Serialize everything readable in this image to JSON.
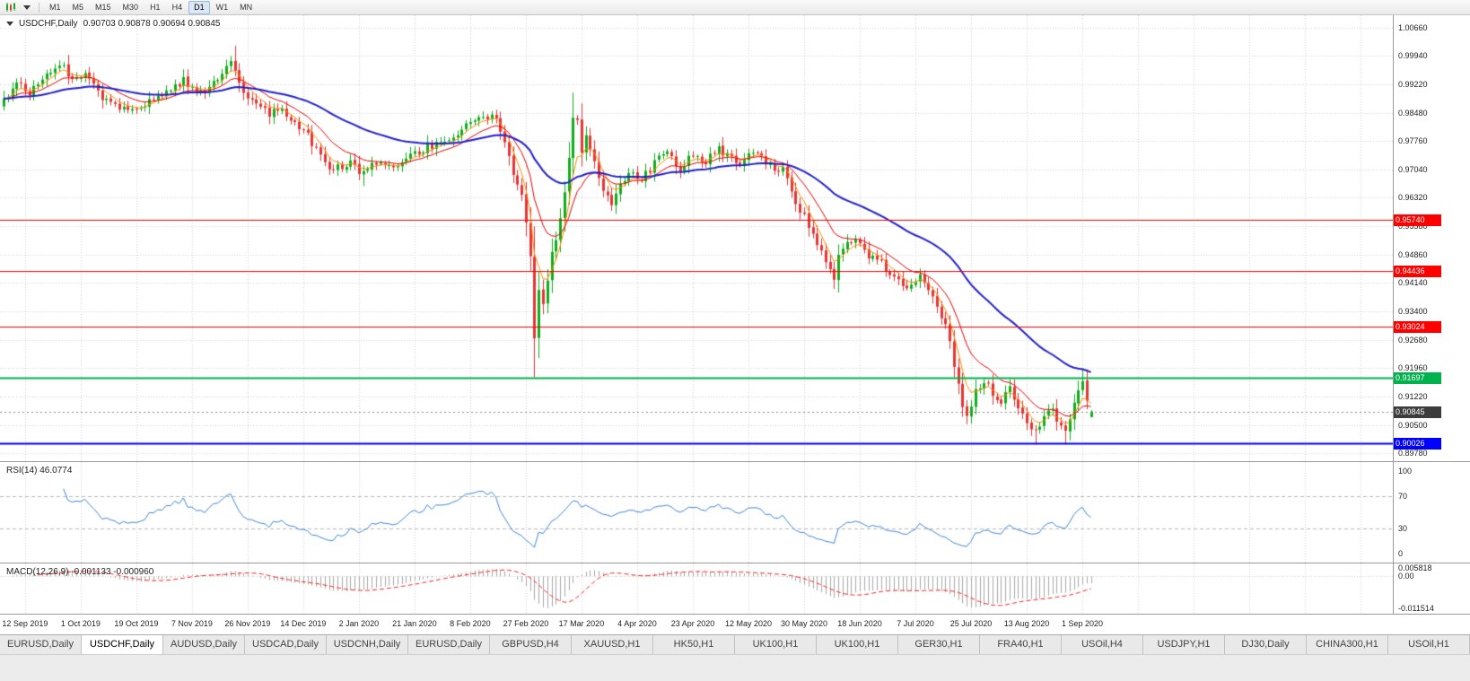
{
  "toolbar": {
    "timeframes": [
      {
        "label": "M1",
        "active": false
      },
      {
        "label": "M5",
        "active": false
      },
      {
        "label": "M15",
        "active": false
      },
      {
        "label": "M30",
        "active": false
      },
      {
        "label": "H1",
        "active": false
      },
      {
        "label": "H4",
        "active": false
      },
      {
        "label": "D1",
        "active": true
      },
      {
        "label": "W1",
        "active": false
      },
      {
        "label": "MN",
        "active": false
      }
    ]
  },
  "chart": {
    "title_symbol": "USDCHF,Daily",
    "title_ohlc": "0.90703 0.90878 0.90694 0.90845",
    "price_axis_labels": [
      "1.00660",
      "0.99940",
      "0.99220",
      "0.98480",
      "0.97760",
      "0.97040",
      "0.96320",
      "0.95580",
      "0.94860",
      "0.94140",
      "0.93400",
      "0.92680",
      "0.91960",
      "0.91220",
      "0.90500",
      "0.89780"
    ],
    "hlines": [
      {
        "price": 0.9574,
        "label": "0.95740",
        "color": "#ff0000",
        "width": 1
      },
      {
        "price": 0.94436,
        "label": "0.94436",
        "color": "#ff0000",
        "width": 1
      },
      {
        "price": 0.93024,
        "label": "0.93024",
        "color": "#ff0000",
        "width": 1
      },
      {
        "price": 0.91697,
        "label": "0.91697",
        "color": "#00b24c",
        "width": 2
      },
      {
        "price": 0.90026,
        "label": "0.90026",
        "color": "#0000ff",
        "width": 2
      }
    ],
    "current_price": {
      "value": 0.90845,
      "label": "0.90845",
      "color": "#3c3c3c"
    }
  },
  "rsi": {
    "label": "RSI(14) 46.0774",
    "period": 14,
    "last_value": 46.0774,
    "axis": [
      {
        "v": 100,
        "t": "100"
      },
      {
        "v": 70,
        "t": "70"
      },
      {
        "v": 30,
        "t": "30"
      },
      {
        "v": 0,
        "t": "0"
      }
    ],
    "level_lines": [
      70,
      30
    ]
  },
  "macd": {
    "label": "MACD(12,26,9) -0.001133 -0.000960",
    "fast": 12,
    "slow": 26,
    "signal": 9,
    "last_macd": -0.001133,
    "last_signal": -0.00096,
    "axis_top": "0.005818",
    "axis_zero": "0.00",
    "axis_bottom": "-0.011514"
  },
  "time_axis": {
    "labels": [
      "12 Sep 2019",
      "1 Oct 2019",
      "19 Oct 2019",
      "7 Nov 2019",
      "26 Nov 2019",
      "14 Dec 2019",
      "2 Jan 2020",
      "21 Jan 2020",
      "8 Feb 2020",
      "27 Feb 2020",
      "17 Mar 2020",
      "4 Apr 2020",
      "23 Apr 2020",
      "12 May 2020",
      "30 May 2020",
      "18 Jun 2020",
      "7 Jul 2020",
      "25 Jul 2020",
      "13 Aug 2020",
      "1 Sep 2020"
    ]
  },
  "tabs": [
    {
      "label": "EURUSD,Daily",
      "active": false
    },
    {
      "label": "USDCHF,Daily",
      "active": true
    },
    {
      "label": "AUDUSD,Daily",
      "active": false
    },
    {
      "label": "USDCAD,Daily",
      "active": false
    },
    {
      "label": "USDCNH,Daily",
      "active": false
    },
    {
      "label": "EURUSD,Daily",
      "active": false
    },
    {
      "label": "GBPUSD,H4",
      "active": false
    },
    {
      "label": "XAUUSD,H1",
      "active": false
    },
    {
      "label": "HK50,H1",
      "active": false
    },
    {
      "label": "UK100,H1",
      "active": false
    },
    {
      "label": "UK100,H1",
      "active": false
    },
    {
      "label": "GER30,H1",
      "active": false
    },
    {
      "label": "FRA40,H1",
      "active": false
    },
    {
      "label": "USOil,H4",
      "active": false
    },
    {
      "label": "USDJPY,H1",
      "active": false
    },
    {
      "label": "DJ30,Daily",
      "active": false
    },
    {
      "label": "CHINA300,H1",
      "active": false
    },
    {
      "label": "USOil,H1",
      "active": false
    }
  ],
  "colors": {
    "up": "#0fae1c",
    "down": "#e93434",
    "ma_fast": "#ff8a00",
    "ma_mid": "#e80000",
    "ma_slow": "#2121cc",
    "rsi": "#3f87d6",
    "rsi_level": "#b8b8b8",
    "macd_hist": "#a8a8a8",
    "macd_signal": "#ff2424",
    "grid": "#d4d4d4",
    "current_line": "#8a8a8a"
  },
  "chart_data": {
    "type": "candlestick",
    "symbol": "USDCHF",
    "timeframe": "Daily",
    "days": 255,
    "time_axis_first_day": 5,
    "time_axis_step_days": 13,
    "last_ohlc": {
      "open": 0.90703,
      "high": 0.90878,
      "low": 0.90694,
      "close": 0.90845
    },
    "visible_price_range": {
      "high": 1.0066,
      "low": 0.8978
    },
    "close_waypoints": [
      [
        0,
        0.9885
      ],
      [
        3,
        0.992
      ],
      [
        6,
        0.99
      ],
      [
        9,
        0.9935
      ],
      [
        12,
        0.9965
      ],
      [
        13,
        0.9975
      ],
      [
        16,
        0.993
      ],
      [
        19,
        0.9958
      ],
      [
        22,
        0.99
      ],
      [
        26,
        0.9865
      ],
      [
        30,
        0.985
      ],
      [
        34,
        0.9882
      ],
      [
        38,
        0.9902
      ],
      [
        42,
        0.993
      ],
      [
        46,
        0.9896
      ],
      [
        50,
        0.9942
      ],
      [
        53,
        0.9985
      ],
      [
        56,
        0.9905
      ],
      [
        59,
        0.9872
      ],
      [
        62,
        0.9845
      ],
      [
        65,
        0.9856
      ],
      [
        68,
        0.982
      ],
      [
        71,
        0.9792
      ],
      [
        74,
        0.9738
      ],
      [
        77,
        0.9692
      ],
      [
        78,
        0.9706
      ],
      [
        81,
        0.9722
      ],
      [
        84,
        0.969
      ],
      [
        88,
        0.973
      ],
      [
        91,
        0.9702
      ],
      [
        95,
        0.9736
      ],
      [
        99,
        0.976
      ],
      [
        104,
        0.9782
      ],
      [
        108,
        0.9812
      ],
      [
        112,
        0.9846
      ],
      [
        115,
        0.983
      ],
      [
        117,
        0.9782
      ],
      [
        119,
        0.9696
      ],
      [
        121,
        0.9632
      ],
      [
        122,
        0.9572
      ],
      [
        123,
        0.9482
      ],
      [
        124,
        0.9282
      ],
      [
        125,
        0.9392
      ],
      [
        126,
        0.9352
      ],
      [
        127,
        0.9422
      ],
      [
        128,
        0.9482
      ],
      [
        129,
        0.9532
      ],
      [
        130,
        0.9582
      ],
      [
        131,
        0.9652
      ],
      [
        132,
        0.9742
      ],
      [
        133,
        0.9842
      ],
      [
        134,
        0.9822
      ],
      [
        135,
        0.9752
      ],
      [
        136,
        0.98
      ],
      [
        138,
        0.9722
      ],
      [
        140,
        0.9652
      ],
      [
        142,
        0.9622
      ],
      [
        143,
        0.9652
      ],
      [
        146,
        0.97
      ],
      [
        149,
        0.9672
      ],
      [
        152,
        0.9722
      ],
      [
        155,
        0.9746
      ],
      [
        158,
        0.9702
      ],
      [
        161,
        0.9746
      ],
      [
        164,
        0.9722
      ],
      [
        167,
        0.9762
      ],
      [
        169,
        0.9736
      ],
      [
        172,
        0.9712
      ],
      [
        175,
        0.9746
      ],
      [
        178,
        0.9722
      ],
      [
        181,
        0.9702
      ],
      [
        182,
        0.9712
      ],
      [
        184,
        0.9642
      ],
      [
        186,
        0.9602
      ],
      [
        188,
        0.9562
      ],
      [
        190,
        0.9512
      ],
      [
        192,
        0.9462
      ],
      [
        194,
        0.9432
      ],
      [
        195,
        0.9482
      ],
      [
        197,
        0.9512
      ],
      [
        199,
        0.9532
      ],
      [
        202,
        0.9482
      ],
      [
        205,
        0.9462
      ],
      [
        208,
        0.9432
      ],
      [
        211,
        0.9402
      ],
      [
        214,
        0.9432
      ],
      [
        217,
        0.9382
      ],
      [
        219,
        0.9332
      ],
      [
        221,
        0.9272
      ],
      [
        222,
        0.9192
      ],
      [
        223,
        0.9152
      ],
      [
        224,
        0.9102
      ],
      [
        225,
        0.9072
      ],
      [
        227,
        0.9142
      ],
      [
        229,
        0.9166
      ],
      [
        231,
        0.9132
      ],
      [
        233,
        0.9112
      ],
      [
        235,
        0.9142
      ],
      [
        237,
        0.9102
      ],
      [
        239,
        0.9062
      ],
      [
        241,
        0.9032
      ],
      [
        243,
        0.9072
      ],
      [
        245,
        0.9092
      ],
      [
        246,
        0.9062
      ],
      [
        248,
        0.9032
      ],
      [
        249,
        0.9062
      ],
      [
        250,
        0.9102
      ],
      [
        251,
        0.9142
      ],
      [
        252,
        0.9162
      ],
      [
        253,
        0.9112
      ],
      [
        254,
        0.90845
      ]
    ],
    "wick_overrides": [
      [
        13,
        "high",
        0.9983
      ],
      [
        54,
        "high",
        1.002
      ],
      [
        84,
        "low",
        0.9661
      ],
      [
        112,
        "high",
        0.9852
      ],
      [
        124,
        "low",
        0.9172
      ],
      [
        133,
        "high",
        0.99
      ],
      [
        194,
        "low",
        0.9398
      ],
      [
        225,
        "low",
        0.9052
      ],
      [
        241,
        "low",
        0.9
      ],
      [
        248,
        "low",
        0.9
      ],
      [
        252,
        "high",
        0.9196
      ]
    ],
    "moving_averages": [
      {
        "period": 5,
        "type": "ema",
        "color_key": "ma_fast"
      },
      {
        "period": 13,
        "type": "ema",
        "color_key": "ma_mid"
      },
      {
        "period": 45,
        "type": "ema",
        "color_key": "ma_slow"
      }
    ]
  }
}
